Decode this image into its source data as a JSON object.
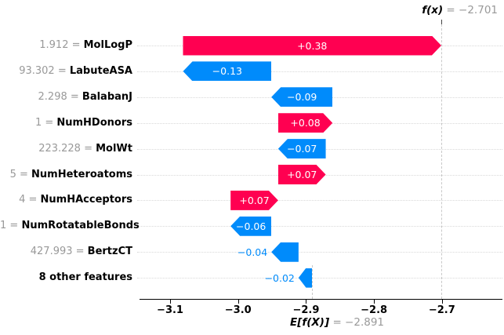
{
  "chart_data": {
    "type": "bar",
    "subtype": "shap-waterfall",
    "title": "",
    "fx_name": "f(x)",
    "fx_eq": " = −2.701",
    "fx_value": -2.701,
    "base_name": "E[f(X)]",
    "base_eq": " = −2.891",
    "base_value": -2.891,
    "axis_range": [
      -3.145,
      -2.611
    ],
    "xticks": [
      -3.1,
      -3.0,
      -2.9,
      -2.8,
      -2.7
    ],
    "xtick_labels": [
      "−3.1",
      "−3.0",
      "−2.9",
      "−2.8",
      "−2.7"
    ],
    "grid": "horizontal-dotted",
    "colors": {
      "positive": "#ff0051",
      "negative": "#008bfb",
      "feature_value_text": "#999999",
      "feature_name_text": "#000000",
      "inside_label_text": "#ffffff",
      "outside_label_text": "#008bfb",
      "gridline": "#d9d9d9",
      "dashed_line": "#c9c9c9"
    },
    "rows": [
      {
        "feature_value": "1.912",
        "feature_name": "MolLogP",
        "shap": 0.38,
        "label": "+0.38",
        "from": -3.081,
        "to": -2.701,
        "label_inside": true
      },
      {
        "feature_value": "93.302",
        "feature_name": "LabuteASA",
        "shap": -0.13,
        "label": "−0.13",
        "from": -2.951,
        "to": -3.081,
        "label_inside": true
      },
      {
        "feature_value": "2.298",
        "feature_name": "BalabanJ",
        "shap": -0.09,
        "label": "−0.09",
        "from": -2.861,
        "to": -2.951,
        "label_inside": true
      },
      {
        "feature_value": "1",
        "feature_name": "NumHDonors",
        "shap": 0.08,
        "label": "+0.08",
        "from": -2.941,
        "to": -2.861,
        "label_inside": true
      },
      {
        "feature_value": "223.228",
        "feature_name": "MolWt",
        "shap": -0.07,
        "label": "−0.07",
        "from": -2.871,
        "to": -2.941,
        "label_inside": true
      },
      {
        "feature_value": "5",
        "feature_name": "NumHeteroatoms",
        "shap": 0.07,
        "label": "+0.07",
        "from": -2.941,
        "to": -2.871,
        "label_inside": true
      },
      {
        "feature_value": "4",
        "feature_name": "NumHAcceptors",
        "shap": 0.07,
        "label": "+0.07",
        "from": -3.011,
        "to": -2.941,
        "label_inside": true
      },
      {
        "feature_value": "1",
        "feature_name": "NumRotatableBonds",
        "shap": -0.06,
        "label": "−0.06",
        "from": -2.951,
        "to": -3.011,
        "label_inside": true
      },
      {
        "feature_value": "427.993",
        "feature_name": "BertzCT",
        "shap": -0.04,
        "label": "−0.04",
        "from": -2.911,
        "to": -2.951,
        "label_inside": false
      },
      {
        "feature_value": null,
        "feature_name": "8 other features",
        "shap": -0.02,
        "label": "−0.02",
        "from": -2.891,
        "to": -2.911,
        "label_inside": false
      }
    ]
  }
}
